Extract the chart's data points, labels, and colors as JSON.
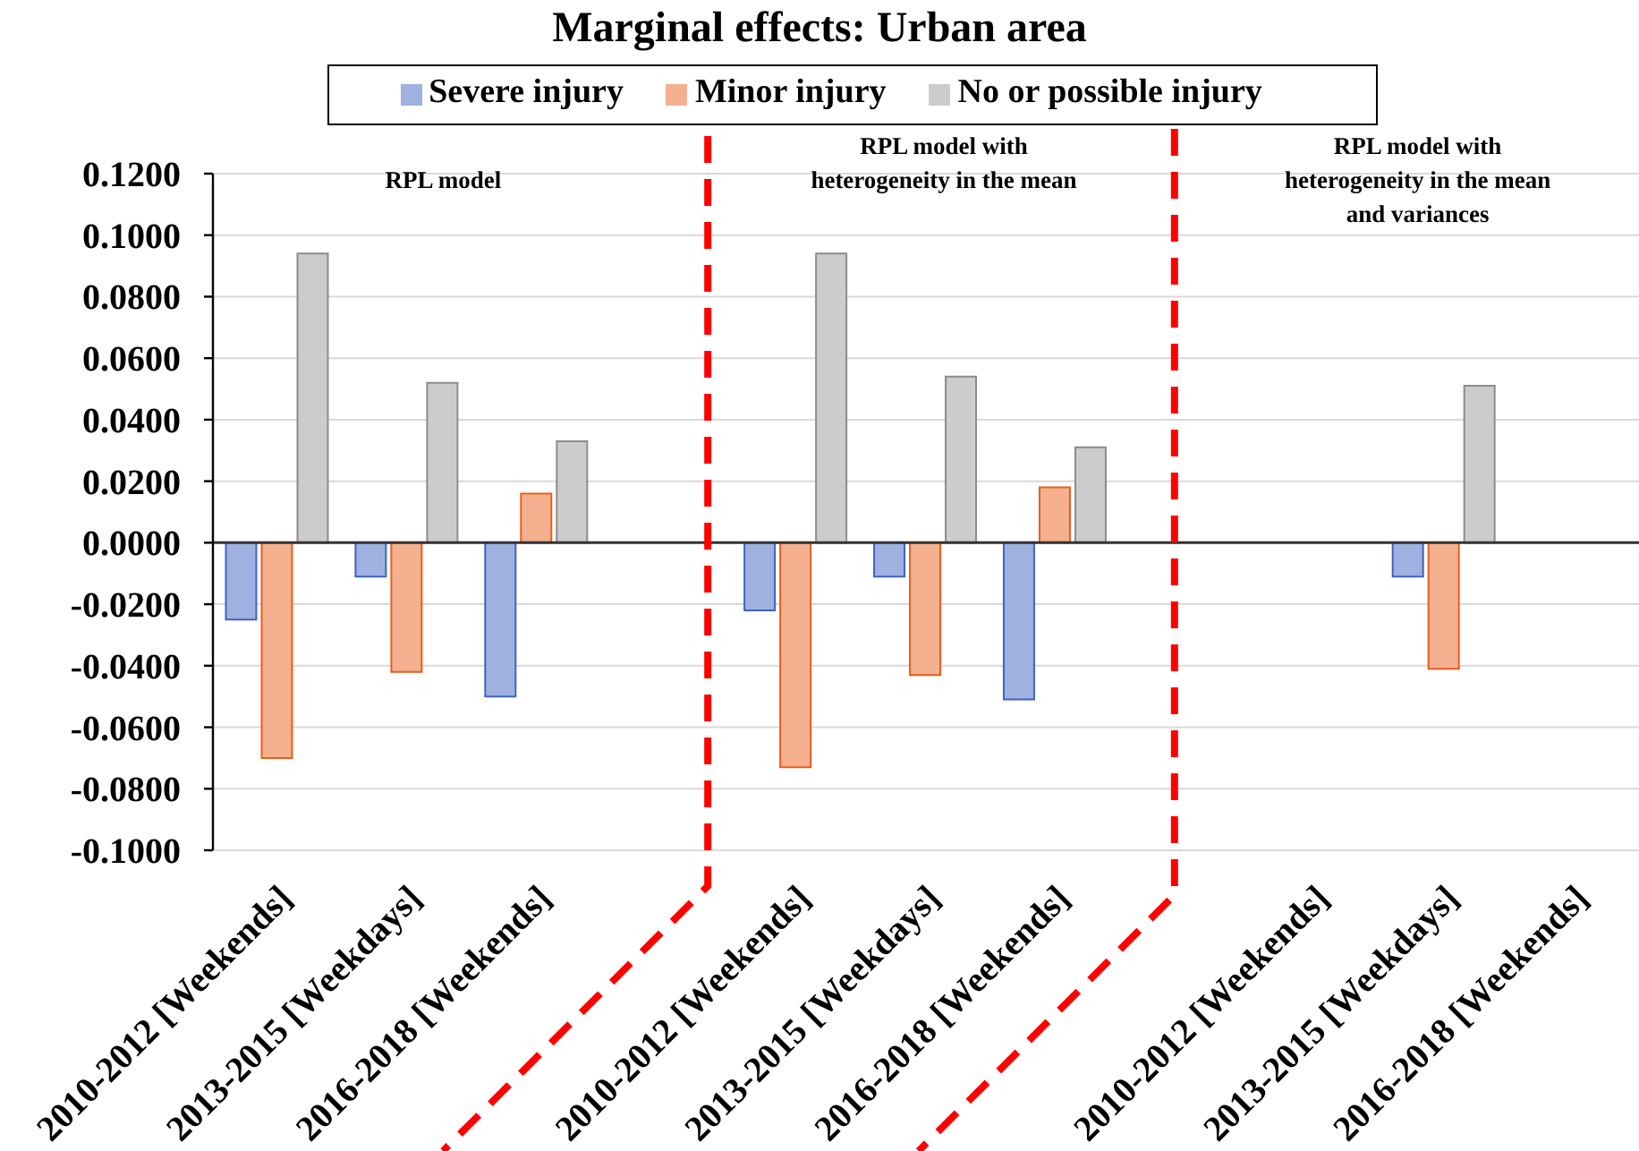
{
  "chart_data": {
    "type": "bar",
    "title": "Marginal effects: Urban area",
    "categories": [
      "2010-2012 [Weekends]",
      "2013-2015 [Weekdays]",
      "2016-2018 [Weekends]",
      null,
      "2010-2012 [Weekends]",
      "2013-2015 [Weekdays]",
      "2016-2018 [Weekends]",
      null,
      "2010-2012 [Weekends]",
      "2013-2015 [Weekdays]",
      "2016-2018 [Weekends]"
    ],
    "series": [
      {
        "name": "Severe injury",
        "color": "#9fb1e0",
        "values": [
          -0.025,
          -0.011,
          -0.05,
          null,
          -0.022,
          -0.011,
          -0.051,
          null,
          null,
          -0.011,
          null
        ]
      },
      {
        "name": "Minor injury",
        "color": "#f4b08f",
        "values": [
          -0.07,
          -0.042,
          0.016,
          null,
          -0.073,
          -0.043,
          0.018,
          null,
          null,
          -0.041,
          null
        ]
      },
      {
        "name": "No or possible injury",
        "color": "#cccccc",
        "values": [
          0.094,
          0.052,
          0.033,
          null,
          0.094,
          0.054,
          0.031,
          null,
          null,
          0.051,
          null
        ]
      }
    ],
    "ylim": [
      -0.1,
      0.12
    ],
    "yticks": [
      {
        "value": -0.1,
        "label": "-0.1000"
      },
      {
        "value": -0.08,
        "label": "-0.0800"
      },
      {
        "value": -0.06,
        "label": "-0.0600"
      },
      {
        "value": -0.04,
        "label": "-0.0400"
      },
      {
        "value": -0.02,
        "label": "-0.0200"
      },
      {
        "value": 0,
        "label": "0.0000"
      },
      {
        "value": 0.02,
        "label": "0.0200"
      },
      {
        "value": 0.04,
        "label": "0.0400"
      },
      {
        "value": 0.06,
        "label": "0.0600"
      },
      {
        "value": 0.08,
        "label": "0.0800"
      },
      {
        "value": 0.1,
        "label": "0.1000"
      },
      {
        "value": 0.12,
        "label": "0.1200"
      }
    ],
    "grid": "y",
    "legend": "top",
    "annotations": [
      "RPL model",
      "RPL model with heterogeneity in the mean",
      "RPL model with heterogeneity in the mean and variances"
    ]
  }
}
